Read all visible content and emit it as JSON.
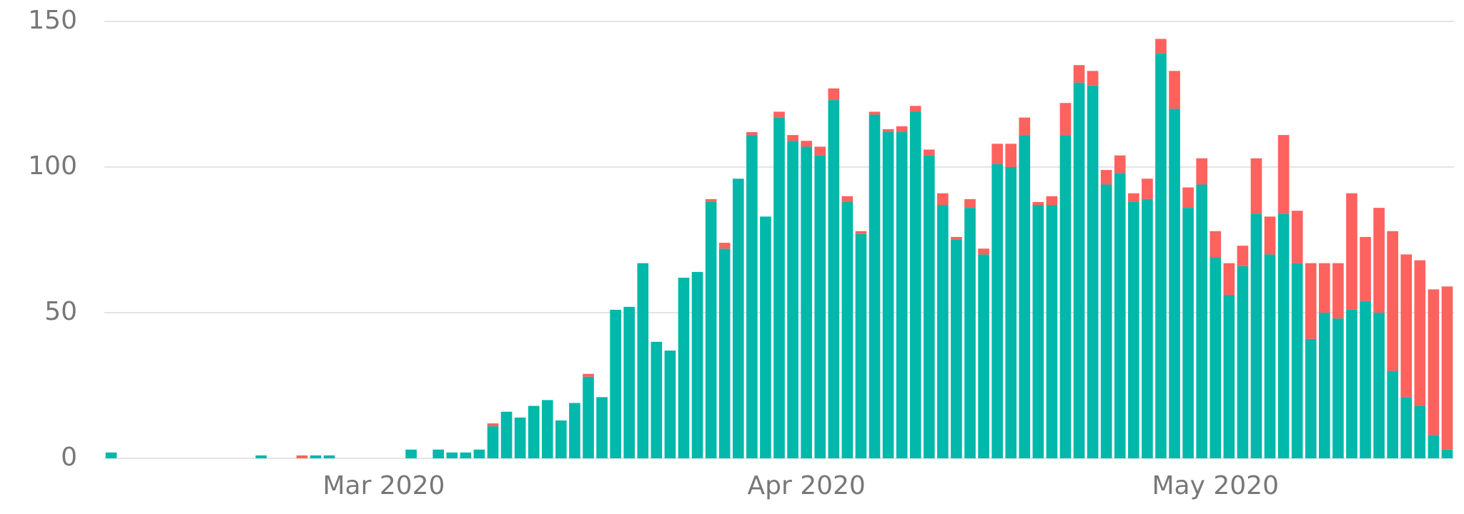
{
  "chart_data": {
    "type": "stacked-bar",
    "categories": [
      null,
      null,
      null,
      null,
      null,
      null,
      null,
      null,
      null,
      null,
      null,
      null,
      null,
      null,
      null,
      null,
      null,
      null,
      null,
      null,
      "Mar 2020",
      null,
      null,
      null,
      null,
      null,
      null,
      null,
      null,
      null,
      null,
      null,
      null,
      null,
      null,
      null,
      null,
      null,
      null,
      null,
      null,
      null,
      null,
      null,
      null,
      null,
      null,
      null,
      null,
      null,
      null,
      "Apr 2020",
      null,
      null,
      null,
      null,
      null,
      null,
      null,
      null,
      null,
      null,
      null,
      null,
      null,
      null,
      null,
      null,
      null,
      null,
      null,
      null,
      null,
      null,
      null,
      null,
      null,
      null,
      null,
      null,
      null,
      "May 2020",
      null,
      null,
      null,
      null,
      null,
      null,
      null,
      null,
      null,
      null,
      null,
      null,
      null,
      null,
      null,
      null,
      null
    ],
    "series": [
      {
        "color": "#01b8aa",
        "values": [
          2,
          0,
          0,
          0,
          0,
          0,
          0,
          0,
          0,
          0,
          0,
          1,
          0,
          0,
          0,
          1,
          1,
          0,
          0,
          0,
          0,
          0,
          3,
          0,
          3,
          2,
          2,
          3,
          11,
          16,
          14,
          18,
          20,
          13,
          19,
          28,
          21,
          51,
          52,
          67,
          40,
          37,
          62,
          64,
          88,
          72,
          96,
          111,
          83,
          117,
          109,
          107,
          104,
          123,
          88,
          77,
          118,
          112,
          112,
          119,
          104,
          87,
          75,
          86,
          70,
          101,
          100,
          111,
          87,
          87,
          111,
          129,
          128,
          94,
          98,
          88,
          89,
          139,
          120,
          86,
          94,
          69,
          56,
          66,
          84,
          70,
          84,
          67,
          41,
          50,
          48,
          51,
          54,
          50,
          30,
          21,
          18,
          8,
          3
        ]
      },
      {
        "color": "#fd625e",
        "values": [
          0,
          0,
          0,
          0,
          0,
          0,
          0,
          0,
          0,
          0,
          0,
          0,
          0,
          0,
          1,
          0,
          0,
          0,
          0,
          0,
          0,
          0,
          0,
          0,
          0,
          0,
          0,
          0,
          1,
          0,
          0,
          0,
          0,
          0,
          0,
          1,
          0,
          0,
          0,
          0,
          0,
          0,
          0,
          0,
          1,
          2,
          0,
          1,
          0,
          2,
          2,
          2,
          3,
          4,
          2,
          1,
          1,
          1,
          2,
          2,
          2,
          4,
          1,
          3,
          2,
          7,
          8,
          6,
          1,
          3,
          11,
          6,
          5,
          5,
          6,
          3,
          7,
          5,
          13,
          7,
          9,
          9,
          11,
          7,
          19,
          13,
          27,
          18,
          26,
          17,
          19,
          40,
          22,
          36,
          48,
          49,
          50,
          50,
          56
        ]
      }
    ],
    "ylim": [
      0,
      150
    ],
    "yticks": [
      0,
      50,
      100,
      150
    ],
    "grid": true
  }
}
